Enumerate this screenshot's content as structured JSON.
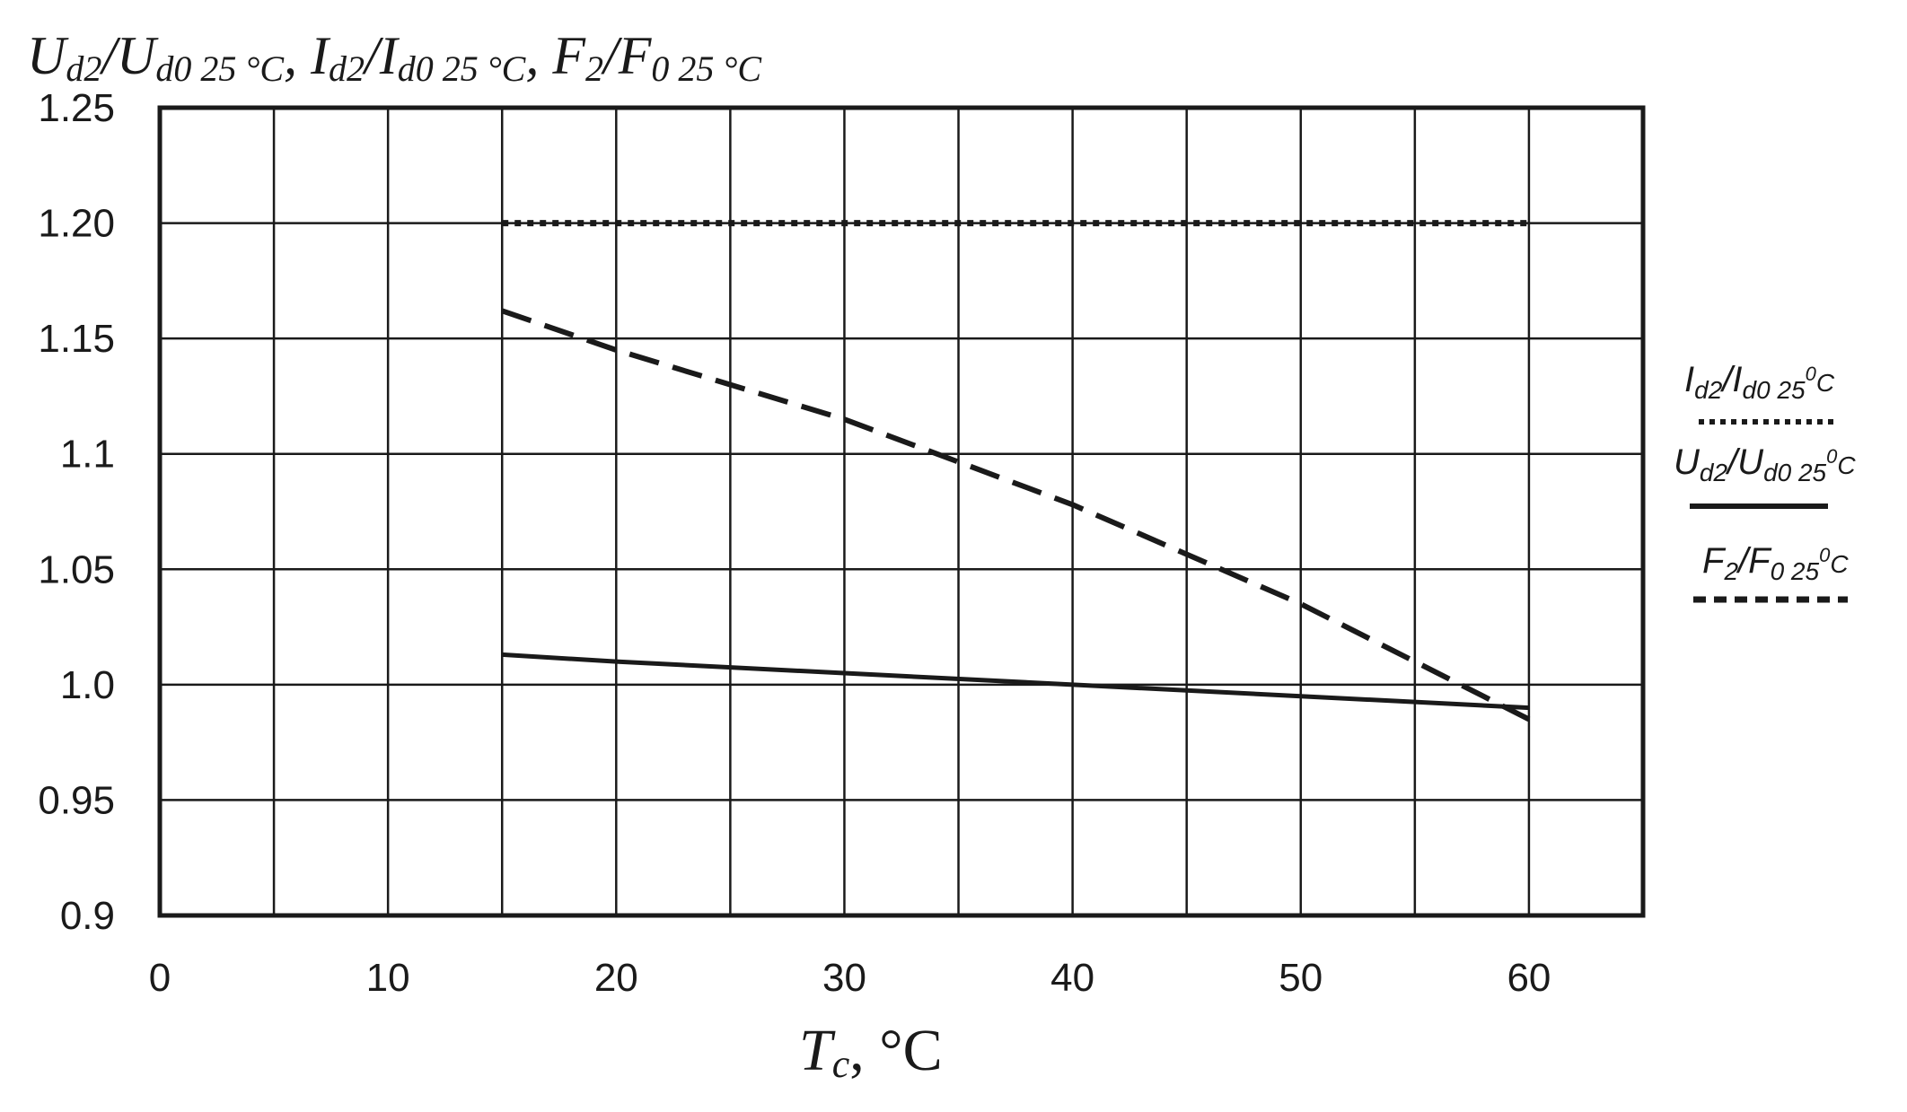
{
  "chart_data": {
    "type": "line",
    "title": "",
    "ylabel_parts": {
      "u_main": "U",
      "u_sub": "d2",
      "u_sep": "/",
      "u0_main": "U",
      "u0_sub": "d0 25 °C",
      "sep1": ", ",
      "i_main": "I",
      "i_sub": "d2",
      "i_sep": "/",
      "i0_main": "I",
      "i0_sub": "d0 25 °C",
      "sep2": ", ",
      "f_main": "F",
      "f_sub": "2",
      "f_sep": "/",
      "f0_main": "F",
      "f0_sub": "0 25 °C"
    },
    "xlabel_parts": {
      "main": "T",
      "sub": "c",
      "rest": ", °C"
    },
    "x_ticks": [
      "0",
      "10",
      "20",
      "30",
      "40",
      "50",
      "60"
    ],
    "y_ticks": [
      "0.9",
      "0.95",
      "1.0",
      "1.05",
      "1.1",
      "1.15",
      "1.20",
      "1.25"
    ],
    "xlim": [
      0,
      65
    ],
    "ylim": [
      0.9,
      1.25
    ],
    "grid": true,
    "grid_x_step": 5,
    "grid_y_step": 0.05,
    "legend_position": "right",
    "series": [
      {
        "key": "current",
        "style": "dotted",
        "color": "#1a1a1a",
        "x": [
          15,
          60
        ],
        "y": [
          1.2,
          1.2
        ]
      },
      {
        "key": "voltage",
        "style": "solid",
        "color": "#1a1a1a",
        "x": [
          15,
          20,
          30,
          40,
          50,
          60
        ],
        "y": [
          1.013,
          1.01,
          1.005,
          1.0,
          0.995,
          0.99
        ]
      },
      {
        "key": "force",
        "style": "dashed",
        "color": "#1a1a1a",
        "x": [
          15,
          20,
          30,
          40,
          50,
          60
        ],
        "y": [
          1.162,
          1.145,
          1.115,
          1.078,
          1.035,
          0.985
        ]
      }
    ],
    "legend": [
      {
        "series": "current",
        "style": "dotted",
        "main": "I",
        "sub1": "d2",
        "sep": "/",
        "main2": "I",
        "sub2": "d0 25",
        "sup": "0",
        "unit": "C"
      },
      {
        "series": "voltage",
        "style": "solid",
        "main": "U",
        "sub1": "d2",
        "sep": "/",
        "main2": "U",
        "sub2": "d0 25",
        "sup": "0",
        "unit": "C"
      },
      {
        "series": "force",
        "style": "dashed",
        "main": "F",
        "sub1": "2",
        "sep": "/",
        "main2": "F",
        "sub2": "0 25",
        "sup": "0",
        "unit": "C"
      }
    ]
  }
}
